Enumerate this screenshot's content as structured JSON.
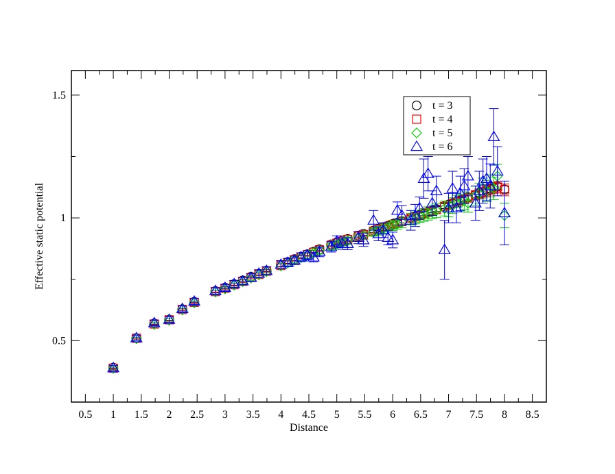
{
  "chart_data": {
    "type": "scatter",
    "xlabel": "Distance",
    "ylabel": "Effective static potential",
    "xlim": [
      0.25,
      8.75
    ],
    "ylim": [
      0.25,
      1.6
    ],
    "x_ticks": [
      "0.5",
      "1",
      "1.5",
      "2",
      "2.5",
      "3",
      "3.5",
      "4",
      "4.5",
      "5",
      "5.5",
      "6",
      "6.5",
      "7",
      "7.5",
      "8",
      "8.5"
    ],
    "y_ticks": [
      "0.5",
      "1",
      "1.5"
    ],
    "legend_position": "top-right",
    "x_values": [
      1.0,
      1.414,
      1.732,
      2.0,
      2.236,
      2.449,
      2.828,
      3.0,
      3.162,
      3.317,
      3.464,
      3.606,
      3.742,
      4.0,
      4.123,
      4.243,
      4.359,
      4.472,
      4.583,
      4.69,
      4.899,
      5.0,
      5.099,
      5.196,
      5.385,
      5.477,
      5.657,
      5.745,
      5.831,
      5.916,
      6.0,
      6.083,
      6.164,
      6.325,
      6.403,
      6.481,
      6.557,
      6.633,
      6.708,
      6.782,
      6.928,
      7.0,
      7.071,
      7.141,
      7.211,
      7.28,
      7.348,
      7.483,
      7.55,
      7.616,
      7.681,
      7.746,
      7.81,
      7.874,
      8.0
    ],
    "series": [
      {
        "name": "t = 3",
        "marker": "circle",
        "color": "#000000",
        "values": [
          0.39,
          0.51,
          0.57,
          0.586,
          0.628,
          0.658,
          0.702,
          0.716,
          0.73,
          0.745,
          0.76,
          0.772,
          0.785,
          0.808,
          0.82,
          0.832,
          0.842,
          0.852,
          0.862,
          0.872,
          0.892,
          0.9,
          0.908,
          0.914,
          0.928,
          0.935,
          0.948,
          0.955,
          0.962,
          0.968,
          0.975,
          0.98,
          0.987,
          1.0,
          1.006,
          1.012,
          1.018,
          1.024,
          1.03,
          1.036,
          1.048,
          1.054,
          1.06,
          1.066,
          1.072,
          1.078,
          1.084,
          1.094,
          1.1,
          1.106,
          1.112,
          1.118,
          1.124,
          1.128,
          1.116
        ],
        "errors": [
          0.003,
          0.003,
          0.003,
          0.003,
          0.003,
          0.003,
          0.004,
          0.004,
          0.004,
          0.004,
          0.004,
          0.004,
          0.004,
          0.005,
          0.005,
          0.005,
          0.005,
          0.005,
          0.005,
          0.005,
          0.006,
          0.006,
          0.006,
          0.006,
          0.006,
          0.006,
          0.007,
          0.007,
          0.007,
          0.007,
          0.008,
          0.008,
          0.008,
          0.008,
          0.008,
          0.009,
          0.009,
          0.009,
          0.009,
          0.01,
          0.01,
          0.01,
          0.01,
          0.01,
          0.011,
          0.011,
          0.011,
          0.012,
          0.012,
          0.012,
          0.012,
          0.013,
          0.013,
          0.013,
          0.014
        ]
      },
      {
        "name": "t = 4",
        "marker": "square",
        "color": "#ff0000",
        "values": [
          0.388,
          0.51,
          0.568,
          0.585,
          0.627,
          0.656,
          0.7,
          0.713,
          0.728,
          0.742,
          0.757,
          0.77,
          0.783,
          0.806,
          0.818,
          0.83,
          0.84,
          0.85,
          0.86,
          0.87,
          0.889,
          0.897,
          0.905,
          0.912,
          0.925,
          0.932,
          0.946,
          0.953,
          0.96,
          0.966,
          0.973,
          0.978,
          0.985,
          0.998,
          1.004,
          1.01,
          1.016,
          1.022,
          1.028,
          1.034,
          1.046,
          1.052,
          1.058,
          1.064,
          1.07,
          1.076,
          1.082,
          1.092,
          1.098,
          1.104,
          1.11,
          1.116,
          1.122,
          1.126,
          1.114
        ],
        "errors": [
          0.004,
          0.004,
          0.004,
          0.004,
          0.004,
          0.004,
          0.005,
          0.005,
          0.005,
          0.005,
          0.005,
          0.005,
          0.005,
          0.006,
          0.006,
          0.006,
          0.006,
          0.006,
          0.007,
          0.007,
          0.008,
          0.008,
          0.008,
          0.008,
          0.009,
          0.009,
          0.01,
          0.01,
          0.01,
          0.011,
          0.011,
          0.012,
          0.012,
          0.012,
          0.013,
          0.013,
          0.013,
          0.014,
          0.014,
          0.015,
          0.015,
          0.016,
          0.016,
          0.017,
          0.017,
          0.018,
          0.018,
          0.019,
          0.02,
          0.02,
          0.021,
          0.022,
          0.022,
          0.023,
          0.024
        ]
      },
      {
        "name": "t = 5",
        "marker": "diamond",
        "color": "#00cc00",
        "values": [
          0.387,
          0.508,
          0.566,
          0.583,
          0.625,
          0.654,
          0.698,
          0.711,
          0.726,
          0.74,
          0.755,
          0.768,
          0.781,
          0.804,
          0.816,
          0.828,
          0.838,
          0.848,
          0.857,
          0.867,
          0.884,
          0.892,
          0.9,
          0.907,
          0.92,
          0.928,
          0.942,
          0.948,
          0.956,
          0.962,
          0.969,
          0.975,
          0.982,
          0.995,
          1.0,
          1.007,
          1.012,
          1.018,
          1.024,
          1.03,
          1.038,
          1.035,
          1.05,
          1.058,
          1.06,
          1.07,
          1.06,
          1.09,
          1.1,
          1.12,
          1.11,
          1.13,
          1.12,
          1.17,
          1.01
        ],
        "errors": [
          0.006,
          0.006,
          0.006,
          0.006,
          0.007,
          0.007,
          0.008,
          0.008,
          0.008,
          0.009,
          0.009,
          0.009,
          0.01,
          0.01,
          0.011,
          0.011,
          0.012,
          0.012,
          0.012,
          0.013,
          0.013,
          0.014,
          0.014,
          0.015,
          0.016,
          0.016,
          0.017,
          0.018,
          0.018,
          0.019,
          0.02,
          0.021,
          0.022,
          0.023,
          0.024,
          0.025,
          0.026,
          0.027,
          0.028,
          0.029,
          0.03,
          0.031,
          0.032,
          0.034,
          0.035,
          0.036,
          0.037,
          0.039,
          0.04,
          0.042,
          0.043,
          0.045,
          0.046,
          0.048,
          0.05
        ]
      },
      {
        "name": "t = 6",
        "marker": "triangle",
        "color": "#0000ff",
        "values": [
          0.389,
          0.511,
          0.572,
          0.586,
          0.63,
          0.66,
          0.703,
          0.716,
          0.731,
          0.743,
          0.757,
          0.774,
          0.785,
          0.81,
          0.818,
          0.827,
          0.84,
          0.848,
          0.84,
          0.862,
          0.882,
          0.905,
          0.895,
          0.895,
          0.92,
          0.91,
          0.99,
          0.935,
          0.95,
          0.92,
          0.91,
          1.03,
          1.01,
          0.99,
          1.01,
          1.04,
          1.16,
          1.18,
          1.06,
          1.11,
          0.87,
          1.04,
          1.12,
          1.04,
          1.1,
          1.13,
          1.17,
          1.06,
          1.11,
          1.15,
          1.16,
          1.13,
          1.33,
          1.19,
          1.02
        ],
        "errors": [
          0.01,
          0.01,
          0.011,
          0.011,
          0.012,
          0.012,
          0.013,
          0.013,
          0.014,
          0.014,
          0.015,
          0.015,
          0.016,
          0.016,
          0.017,
          0.017,
          0.018,
          0.018,
          0.019,
          0.02,
          0.021,
          0.022,
          0.023,
          0.024,
          0.025,
          0.026,
          0.04,
          0.028,
          0.03,
          0.03,
          0.032,
          0.035,
          0.04,
          0.04,
          0.045,
          0.045,
          0.08,
          0.07,
          0.05,
          0.06,
          0.12,
          0.06,
          0.07,
          0.06,
          0.07,
          0.07,
          0.08,
          0.07,
          0.08,
          0.09,
          0.09,
          0.09,
          0.115,
          0.1,
          0.13
        ]
      }
    ]
  }
}
